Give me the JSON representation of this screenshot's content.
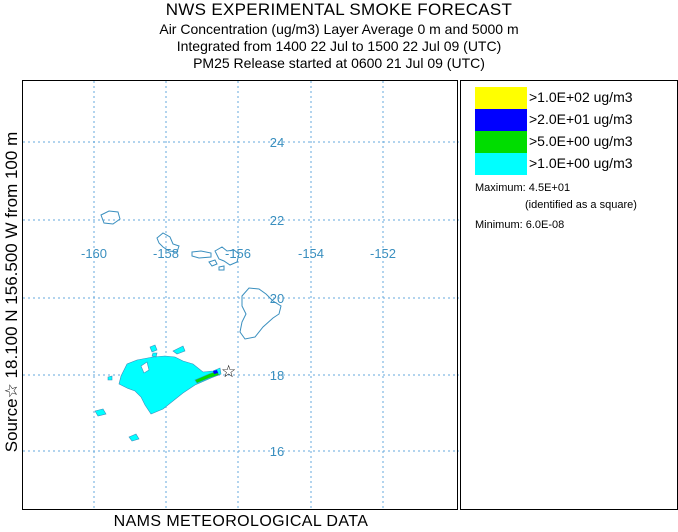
{
  "header": {
    "title": "NWS EXPERIMENTAL SMOKE FORECAST",
    "line2": "Air Concentration (ug/m3) Layer Average    0 m and  5000 m",
    "line3": "Integrated from 1400 22 Jul to 1500 22 Jul 09 (UTC)",
    "line4": "PM25 Release started at 0600 21 Jul 09 (UTC)"
  },
  "side_label": "Source☆ 18.100  N 156.500  W      from   100 m",
  "footer": "NAMS METEOROLOGICAL DATA",
  "map": {
    "grid_color": "#66aadd",
    "coast_color": "#3a8fbf",
    "lon_labels": [
      "-160",
      "-158",
      "-156",
      "-154",
      "-152"
    ],
    "lat_labels": [
      "24",
      "22",
      "20",
      "18",
      "16"
    ],
    "source_marker": "☆"
  },
  "legend": {
    "items": [
      {
        "color": "#ffff00",
        "label": ">1.0E+02 ug/m3"
      },
      {
        "color": "#0000ff",
        "label": ">2.0E+01 ug/m3"
      },
      {
        "color": "#00dd00",
        "label": ">5.0E+00 ug/m3"
      },
      {
        "color": "#00ffff",
        "label": ">1.0E+00 ug/m3"
      }
    ],
    "max_label": "Maximum: 4.5E+01",
    "max_note": "(identified as a square)",
    "min_label": "Minimum: 6.0E-08"
  }
}
